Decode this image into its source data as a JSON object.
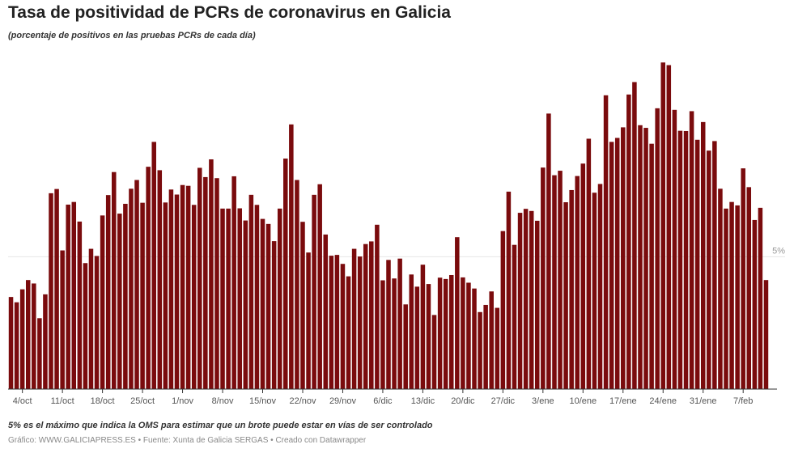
{
  "chart_data": {
    "type": "bar",
    "title": "Tasa de positividad de PCRs de coronavirus en Galicia",
    "subtitle": "(porcentaje de positivos en las pruebas PCRs de cada día)",
    "xlabel": "",
    "ylabel": "",
    "ylim": [
      0,
      12.5
    ],
    "grid": false,
    "reference_line": {
      "value": 5,
      "label": "5%"
    },
    "bar_color": "#7a0b0d",
    "start_date": "2020-10-02",
    "tick_labels": [
      "4/oct",
      "11/oct",
      "18/oct",
      "25/oct",
      "1/nov",
      "8/nov",
      "15/nov",
      "22/nov",
      "29/nov",
      "6/dic",
      "13/dic",
      "20/dic",
      "27/dic",
      "3/ene",
      "10/ene",
      "17/ene",
      "24/ene",
      "31/ene",
      "7/feb"
    ],
    "values": [
      3.48,
      3.28,
      3.77,
      4.12,
      3.99,
      2.68,
      3.58,
      7.4,
      7.56,
      5.24,
      6.97,
      7.07,
      6.33,
      4.76,
      5.3,
      5.03,
      6.56,
      7.33,
      8.2,
      6.63,
      7.0,
      7.57,
      7.9,
      7.04,
      8.4,
      9.34,
      8.27,
      7.05,
      7.54,
      7.35,
      7.71,
      7.68,
      6.96,
      8.36,
      8.01,
      8.68,
      7.97,
      6.82,
      6.82,
      8.04,
      6.83,
      6.37,
      7.34,
      6.96,
      6.43,
      6.24,
      5.59,
      6.82,
      8.71,
      10.0,
      7.9,
      6.32,
      5.16,
      7.34,
      7.74,
      5.84,
      5.04,
      5.07,
      4.73,
      4.26,
      5.3,
      5.01,
      5.48,
      5.58,
      6.21,
      4.11,
      4.88,
      4.18,
      4.93,
      3.2,
      4.33,
      3.87,
      4.7,
      3.97,
      2.8,
      4.21,
      4.16,
      4.31,
      5.74,
      4.22,
      4.02,
      3.8,
      2.91,
      3.18,
      3.69,
      3.07,
      5.97,
      7.46,
      5.45,
      6.66,
      6.81,
      6.73,
      6.36,
      8.37,
      10.41,
      8.08,
      8.25,
      7.06,
      7.52,
      8.05,
      8.52,
      9.46,
      7.42,
      7.75,
      11.1,
      9.34,
      9.49,
      9.89,
      11.13,
      11.6,
      9.97,
      9.87,
      9.27,
      10.61,
      12.34,
      12.24,
      10.55,
      9.76,
      9.75,
      10.5,
      9.42,
      10.09,
      9.01,
      9.37,
      7.57,
      6.82,
      7.07,
      6.94,
      8.34,
      7.63,
      6.39,
      6.85,
      4.12
    ],
    "value_unit": "%"
  },
  "footer": {
    "note": "5% es el máximo que indica la OMS para estimar que un brote puede estar en vías de ser controlado",
    "credit": "Gráfico: WWW.GALICIAPRESS.ES • Fuente: Xunta de Galicia SERGAS • Creado con Datawrapper"
  }
}
